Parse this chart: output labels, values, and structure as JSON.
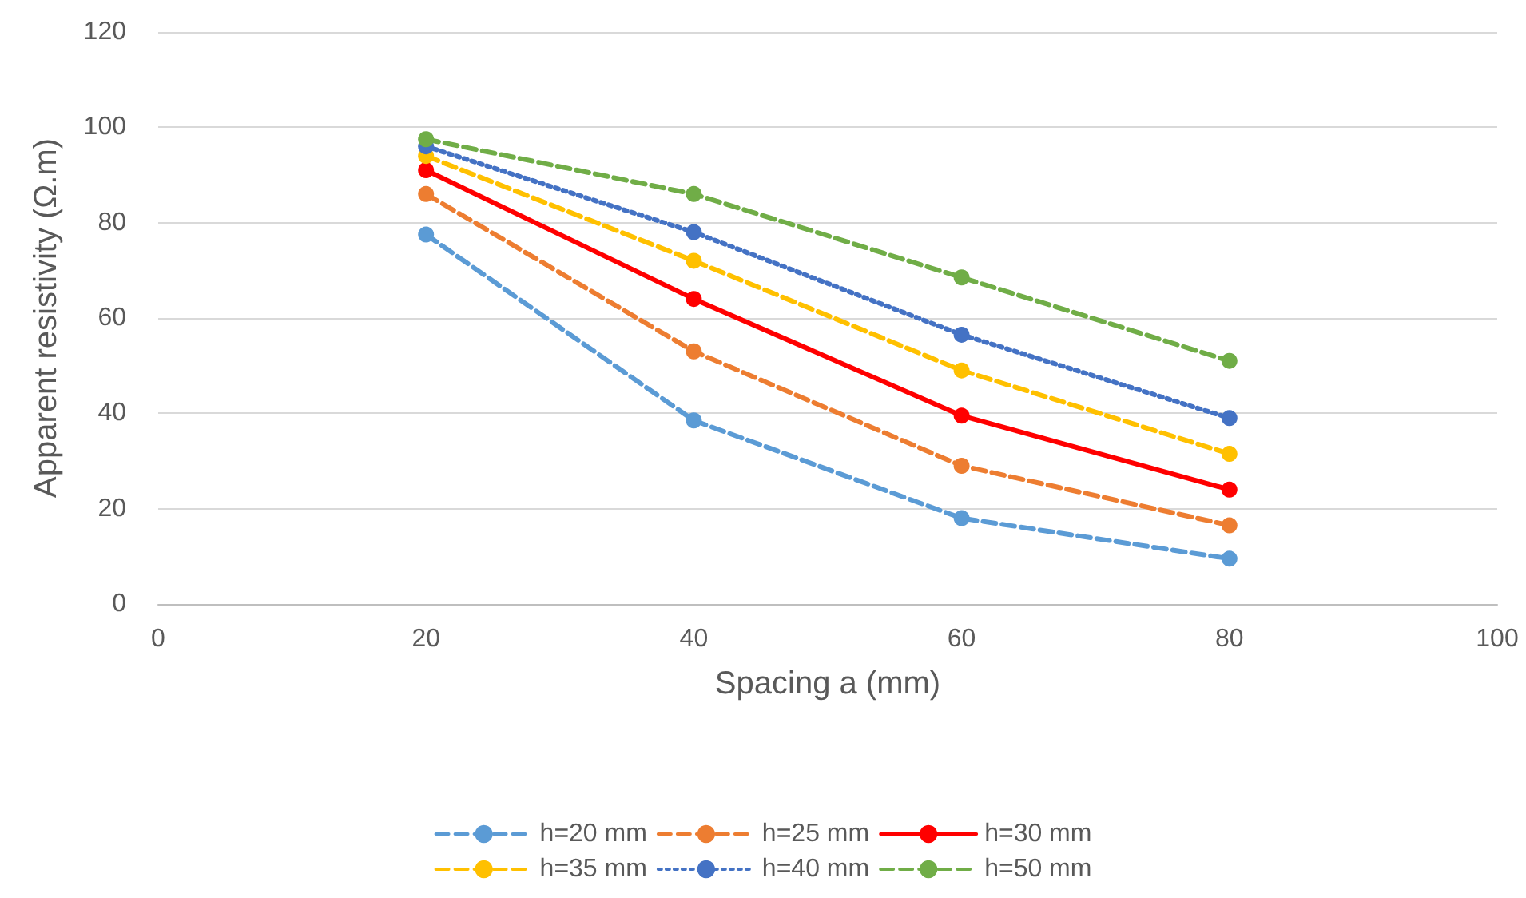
{
  "chart_data": {
    "type": "line",
    "xlabel": "Spacing a (mm)",
    "ylabel": "Apparent resistivity (Ω.m)",
    "x": [
      20,
      40,
      60,
      80
    ],
    "series": [
      {
        "name": "h=20 mm",
        "color": "#5b9bd5",
        "line_style": "dashed",
        "values": [
          77.5,
          38.5,
          18,
          9.5
        ]
      },
      {
        "name": "h=25 mm",
        "color": "#ed7d31",
        "line_style": "dashed",
        "values": [
          86,
          53,
          29,
          16.5
        ]
      },
      {
        "name": "h=30 mm",
        "color": "#ff0000",
        "line_style": "solid",
        "values": [
          91,
          64,
          39.5,
          24
        ]
      },
      {
        "name": "h=35 mm",
        "color": "#ffc000",
        "line_style": "dashed",
        "values": [
          94,
          72,
          49,
          31.5
        ]
      },
      {
        "name": "h=40 mm",
        "color": "#4472c4",
        "line_style": "dotted",
        "values": [
          96,
          78,
          56.5,
          39
        ]
      },
      {
        "name": "h=50 mm",
        "color": "#70ad47",
        "line_style": "dashed",
        "values": [
          97.5,
          86,
          68.5,
          51
        ]
      }
    ],
    "xlim": [
      0,
      100
    ],
    "xticks": [
      0,
      20,
      40,
      60,
      80,
      100
    ],
    "ylim": [
      0,
      120
    ],
    "yticks": [
      0,
      20,
      40,
      60,
      80,
      100,
      120
    ],
    "grid": "y",
    "legend": "bottom",
    "marker": "circle"
  }
}
